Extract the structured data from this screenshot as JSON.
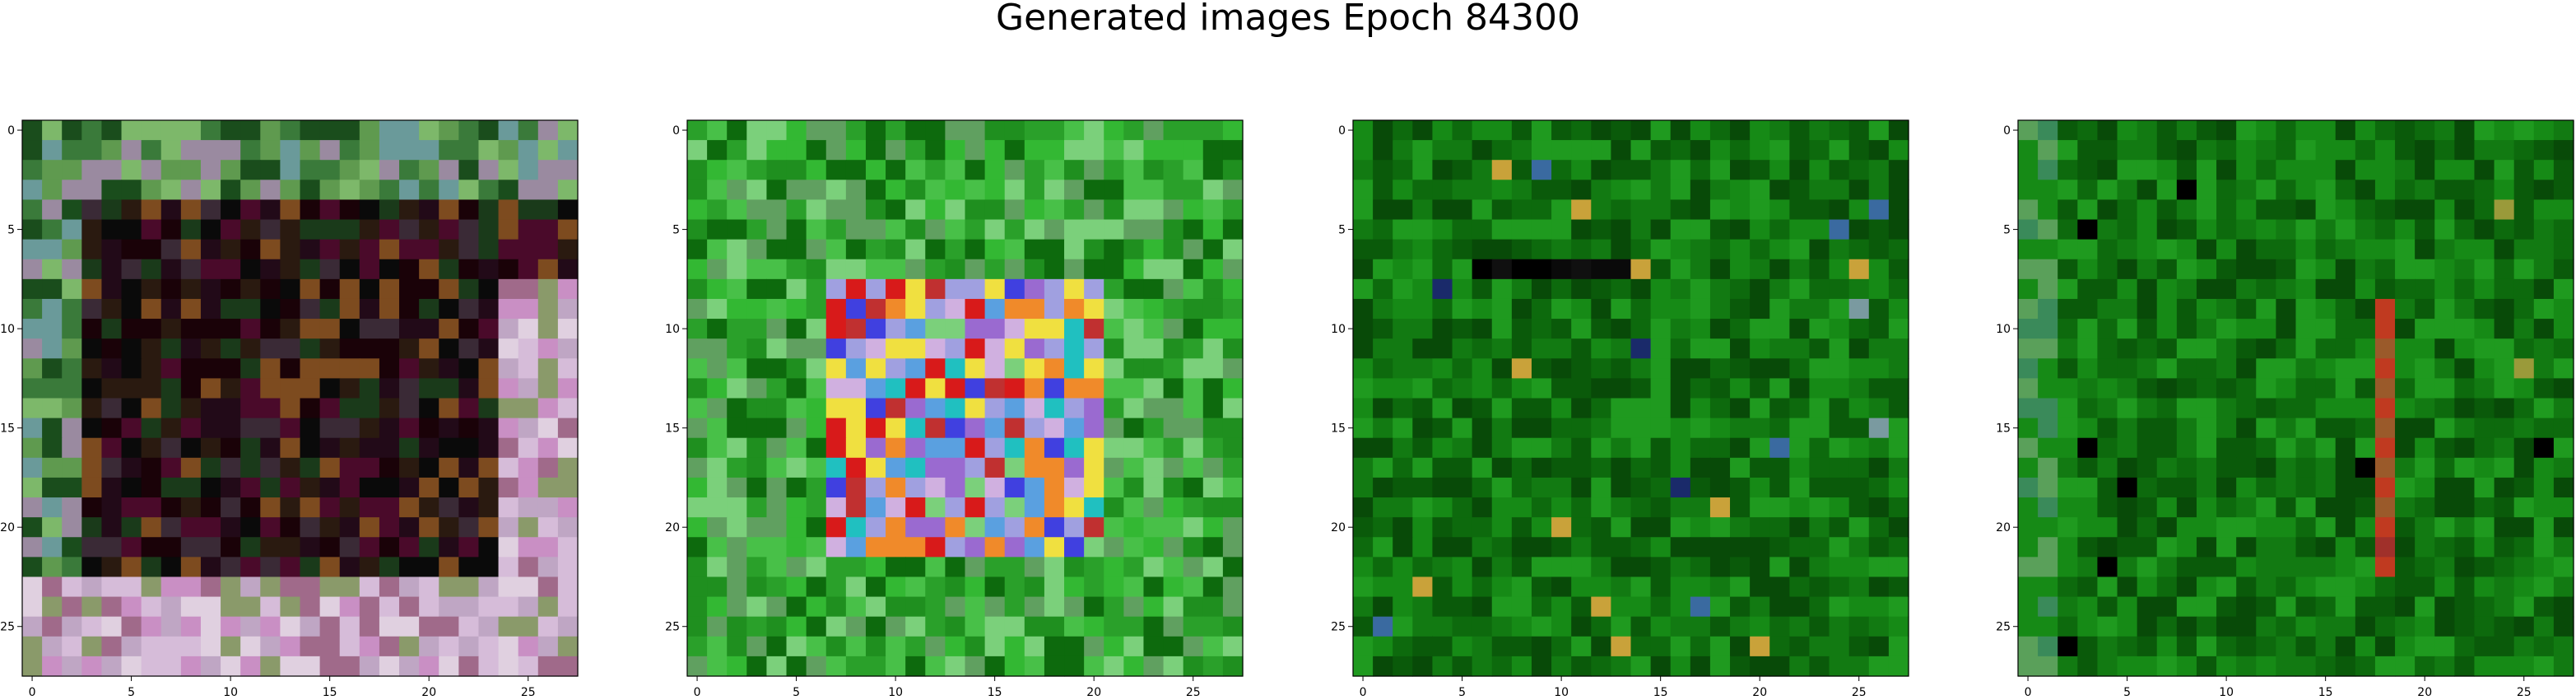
{
  "figure": {
    "title": "Generated images Epoch 84300"
  },
  "chart_data": [
    {
      "type": "heatmap",
      "title": "",
      "grid_size": [
        28,
        28
      ],
      "xlim": [
        -0.5,
        27.5
      ],
      "ylim": [
        27.5,
        -0.5
      ],
      "xticks": [
        0,
        5,
        10,
        15,
        20,
        25
      ],
      "yticks": [
        0,
        5,
        10,
        15,
        20,
        25
      ],
      "palette": [
        "#5f9a4f",
        "#1a4d1c",
        "#1a0208",
        "#220a18",
        "#3a2a36",
        "#d6bcd9",
        "#c98fc4",
        "#a06a8a",
        "#bfa6c4",
        "#7d4b1f",
        "#0f2a0f"
      ],
      "description_regions": "green border, dark interior, pale pink L-shape at bottom/right"
    },
    {
      "type": "heatmap",
      "title": "",
      "grid_size": [
        28,
        28
      ],
      "xlim": [
        -0.5,
        27.5
      ],
      "ylim": [
        27.5,
        -0.5
      ],
      "xticks": [
        0,
        5,
        10,
        15,
        20,
        25
      ],
      "yticks": [
        0,
        5,
        10,
        15,
        20,
        25
      ],
      "palette": [
        "#1f8f1f",
        "#33b833",
        "#0d6a0d",
        "#7bd07b",
        "#5aa0e0",
        "#d81a1a",
        "#f08a2a",
        "#9a6ad0",
        "#d0b0e0",
        "#20c0c0",
        "#f0e040",
        "#4040e0"
      ],
      "description_regions": "green surround with colorful mixed center"
    },
    {
      "type": "heatmap",
      "title": "",
      "grid_size": [
        28,
        28
      ],
      "xlim": [
        -0.5,
        27.5
      ],
      "ylim": [
        27.5,
        -0.5
      ],
      "xticks": [
        0,
        5,
        10,
        15,
        20,
        25
      ],
      "yticks": [
        0,
        5,
        10,
        15,
        20,
        25
      ],
      "palette": [
        "#0d6a0d",
        "#0a5a0a",
        "#168a16",
        "#1f9a1f",
        "#084a08",
        "#1a2a6a",
        "#000000",
        "#7a9aa0",
        "#c9a23a"
      ],
      "description_regions": "mostly green with a dark band near row 7"
    },
    {
      "type": "heatmap",
      "title": "",
      "grid_size": [
        28,
        28
      ],
      "xlim": [
        -0.5,
        27.5
      ],
      "ylim": [
        27.5,
        -0.5
      ],
      "xticks": [
        0,
        5,
        10,
        15,
        20,
        25
      ],
      "yticks": [
        0,
        5,
        10,
        15,
        20,
        25
      ],
      "palette": [
        "#0d6a0d",
        "#168a16",
        "#1f9a1f",
        "#084a08",
        "#5aa05a",
        "#a0302a",
        "#9a9a3a",
        "#000000"
      ],
      "description_regions": "mostly green with a red vertical streak near column 18"
    }
  ]
}
